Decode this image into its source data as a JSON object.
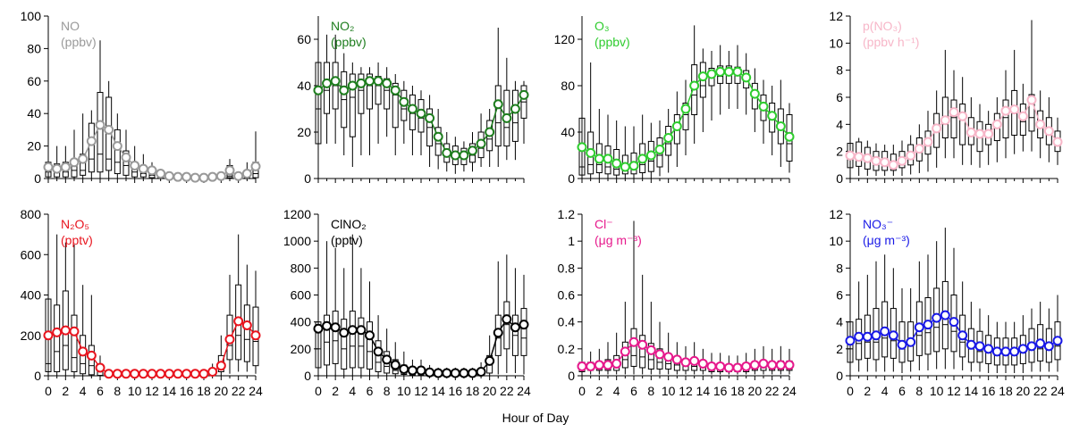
{
  "xlabel": "Hour of Day",
  "chart_data": [
    {
      "type": "box",
      "title": "NO",
      "unit": "(ppbv)",
      "color": "#999999",
      "ylim": [
        0,
        100
      ],
      "yticks": [
        0,
        20,
        40,
        60,
        80,
        100
      ],
      "xticks": [
        0,
        2,
        4,
        6,
        8,
        10,
        12,
        14,
        16,
        18,
        20,
        22,
        24
      ],
      "means": [
        7,
        6,
        7,
        10,
        12,
        23,
        33,
        30,
        20,
        13,
        8,
        6,
        5,
        3,
        1.5,
        1,
        1,
        0.5,
        0.5,
        1,
        1.5,
        5,
        1.5,
        3,
        7.5
      ],
      "q1": [
        1,
        1,
        1,
        1,
        2,
        4,
        4,
        5,
        3,
        2,
        1,
        1,
        0.5,
        0.5,
        0.3,
        0.3,
        0.3,
        0.3,
        0.3,
        0.3,
        0.3,
        0.5,
        0.3,
        0.3,
        0.5
      ],
      "median": [
        4,
        4,
        4,
        5,
        5,
        12,
        15,
        12,
        10,
        8,
        4,
        3,
        2,
        1,
        0.8,
        0.6,
        0.6,
        0.3,
        0.3,
        0.6,
        0.8,
        1.5,
        0.8,
        1.5,
        3
      ],
      "q3": [
        10,
        9,
        10,
        12,
        15,
        34,
        53,
        50,
        30,
        17,
        10,
        8,
        6,
        3,
        2,
        1.5,
        1.5,
        1,
        1,
        1.5,
        2,
        8,
        2,
        5,
        10
      ],
      "wlow": [
        0,
        0,
        0,
        0,
        0,
        0,
        0,
        0,
        0,
        0,
        0,
        0,
        0,
        0,
        0,
        0,
        0,
        0,
        0,
        0,
        0,
        0,
        0,
        0,
        0
      ],
      "whigh": [
        25,
        20,
        20,
        30,
        40,
        42,
        85,
        60,
        40,
        30,
        20,
        15,
        10,
        6,
        4,
        3,
        3,
        2,
        2,
        3,
        4,
        12,
        4,
        10,
        29
      ]
    },
    {
      "type": "box",
      "title": "NO₂",
      "unit": "(ppbv)",
      "color": "#1e7d1e",
      "ylim": [
        0,
        70
      ],
      "yticks": [
        0,
        20,
        40,
        60
      ],
      "xticks": [
        0,
        2,
        4,
        6,
        8,
        10,
        12,
        14,
        16,
        18,
        20,
        22,
        24
      ],
      "means": [
        38,
        41,
        42,
        38,
        40,
        41,
        42,
        42,
        41,
        38,
        33,
        30,
        28,
        26,
        18,
        11,
        10,
        10,
        12,
        15,
        20,
        32,
        26,
        30,
        36
      ],
      "q1": [
        15,
        28,
        30,
        22,
        18,
        28,
        30,
        32,
        30,
        22,
        25,
        21,
        20,
        14,
        10,
        7,
        6,
        6,
        7,
        9,
        12,
        14,
        14,
        16,
        26
      ],
      "median": [
        30,
        38,
        40,
        34,
        35,
        38,
        40,
        40,
        38,
        36,
        30,
        28,
        26,
        22,
        15,
        10,
        9,
        9,
        10,
        13,
        17,
        24,
        22,
        24,
        33
      ],
      "q3": [
        50,
        50,
        50,
        46,
        45,
        45,
        45,
        44,
        43,
        41,
        38,
        36,
        34,
        30,
        22,
        15,
        14,
        13,
        15,
        20,
        25,
        40,
        38,
        38,
        40
      ],
      "wlow": [
        5,
        15,
        15,
        10,
        5,
        10,
        10,
        15,
        18,
        10,
        15,
        10,
        10,
        5,
        4,
        3,
        2,
        3,
        3,
        5,
        5,
        5,
        8,
        8,
        15
      ],
      "whigh": [
        70,
        62,
        62,
        54,
        50,
        48,
        48,
        50,
        48,
        45,
        42,
        40,
        38,
        36,
        30,
        20,
        18,
        16,
        20,
        28,
        30,
        65,
        52,
        42,
        42
      ]
    },
    {
      "type": "box",
      "title": "O₃",
      "unit": "(ppbv)",
      "color": "#2ecc2e",
      "ylim": [
        0,
        140
      ],
      "yticks": [
        0,
        40,
        80,
        120
      ],
      "xticks": [
        0,
        2,
        4,
        6,
        8,
        10,
        12,
        14,
        16,
        18,
        20,
        22,
        24
      ],
      "means": [
        27,
        22,
        17,
        17,
        13,
        10,
        11,
        17,
        20,
        25,
        35,
        45,
        60,
        80,
        88,
        90,
        92,
        92,
        92,
        87,
        73,
        62,
        54,
        45,
        36
      ],
      "q1": [
        3,
        4,
        5,
        4,
        3,
        4,
        4,
        5,
        6,
        10,
        20,
        30,
        42,
        55,
        70,
        80,
        82,
        82,
        82,
        78,
        60,
        50,
        40,
        30,
        15
      ],
      "median": [
        10,
        12,
        12,
        10,
        8,
        7,
        8,
        12,
        15,
        20,
        30,
        42,
        55,
        72,
        80,
        88,
        88,
        90,
        90,
        85,
        70,
        60,
        52,
        42,
        30
      ],
      "q3": [
        52,
        40,
        30,
        28,
        25,
        20,
        22,
        30,
        32,
        35,
        45,
        55,
        65,
        98,
        100,
        95,
        97,
        97,
        96,
        93,
        82,
        72,
        65,
        60,
        55
      ],
      "wlow": [
        0,
        0,
        0,
        0,
        0,
        0,
        0,
        0,
        0,
        2,
        5,
        10,
        20,
        30,
        40,
        50,
        55,
        60,
        60,
        55,
        40,
        30,
        20,
        10,
        5
      ],
      "whigh": [
        98,
        100,
        60,
        55,
        50,
        45,
        45,
        55,
        48,
        50,
        60,
        75,
        85,
        132,
        112,
        110,
        115,
        110,
        115,
        108,
        95,
        85,
        80,
        85,
        65
      ]
    },
    {
      "type": "box",
      "title": "p(NO₃)",
      "unit": "(ppbv h⁻¹)",
      "color": "#f7b6c8",
      "ylim": [
        0,
        12
      ],
      "yticks": [
        0,
        2,
        4,
        6,
        8,
        10,
        12
      ],
      "xticks": [
        0,
        2,
        4,
        6,
        8,
        10,
        12,
        14,
        16,
        18,
        20,
        22,
        24
      ],
      "means": [
        1.7,
        1.6,
        1.5,
        1.3,
        1.2,
        1.0,
        1.3,
        1.7,
        2.2,
        2.7,
        3.7,
        4.3,
        4.9,
        4.6,
        3.4,
        3.3,
        3.3,
        4.0,
        5.0,
        5.1,
        4.6,
        5.8,
        4.0,
        3.5,
        2.7
      ],
      "q1": [
        0.8,
        0.9,
        0.7,
        0.6,
        0.6,
        0.6,
        0.8,
        1.0,
        1.3,
        1.8,
        2.3,
        3.0,
        3.0,
        2.5,
        2.5,
        2.0,
        2.5,
        2.8,
        3.0,
        3.2,
        3.2,
        3.5,
        3.0,
        2.5,
        2.0
      ],
      "median": [
        1.5,
        1.4,
        1.3,
        1.2,
        1.0,
        1.0,
        1.2,
        1.5,
        2.0,
        2.5,
        3.5,
        4.0,
        4.5,
        4.3,
        3.5,
        3.2,
        3.3,
        3.8,
        4.5,
        4.8,
        4.2,
        4.5,
        3.8,
        3.3,
        2.5
      ],
      "q3": [
        2.6,
        2.7,
        2.3,
        2.0,
        2.0,
        1.8,
        2.0,
        2.5,
        3.0,
        3.5,
        4.8,
        6.0,
        5.8,
        5.5,
        4.5,
        4.2,
        4.0,
        4.8,
        5.8,
        6.5,
        5.5,
        6.2,
        5.0,
        4.5,
        3.5
      ],
      "wlow": [
        0.2,
        0.2,
        0.2,
        0.2,
        0.2,
        0.2,
        0.2,
        0.3,
        0.4,
        0.5,
        0.8,
        1.5,
        1.5,
        1.0,
        1.0,
        0.8,
        1.0,
        1.2,
        1.5,
        1.8,
        2.0,
        2.0,
        1.5,
        1.2,
        1.0
      ],
      "whigh": [
        3.2,
        3.0,
        2.8,
        2.6,
        2.5,
        2.5,
        2.8,
        3.2,
        4.0,
        5.0,
        6.5,
        9.5,
        8.0,
        7.5,
        6.0,
        5.5,
        5.0,
        6.0,
        8.0,
        9.5,
        7.0,
        11.7,
        6.5,
        6.0,
        4.5
      ]
    },
    {
      "type": "box",
      "title": "N₂O₅",
      "unit": "(pptv)",
      "color": "#e8141e",
      "ylim": [
        0,
        800
      ],
      "yticks": [
        0,
        200,
        400,
        600,
        800
      ],
      "xticks": [
        0,
        2,
        4,
        6,
        8,
        10,
        12,
        14,
        16,
        18,
        20,
        22,
        24
      ],
      "means": [
        200,
        215,
        225,
        220,
        120,
        100,
        40,
        10,
        10,
        10,
        10,
        10,
        10,
        10,
        10,
        10,
        10,
        10,
        10,
        20,
        50,
        180,
        270,
        250,
        200
      ],
      "q1": [
        20,
        20,
        30,
        20,
        10,
        5,
        2,
        1,
        1,
        1,
        1,
        1,
        1,
        1,
        1,
        1,
        1,
        1,
        1,
        2,
        20,
        80,
        80,
        70,
        50
      ],
      "median": [
        60,
        120,
        150,
        90,
        60,
        50,
        20,
        5,
        5,
        5,
        5,
        5,
        5,
        5,
        5,
        5,
        5,
        5,
        5,
        10,
        40,
        150,
        200,
        180,
        170
      ],
      "q3": [
        380,
        350,
        420,
        300,
        200,
        150,
        50,
        15,
        15,
        15,
        15,
        15,
        15,
        15,
        15,
        15,
        15,
        15,
        15,
        30,
        100,
        300,
        450,
        350,
        340
      ],
      "wlow": [
        0,
        0,
        0,
        0,
        0,
        0,
        0,
        0,
        0,
        0,
        0,
        0,
        0,
        0,
        0,
        0,
        0,
        0,
        0,
        0,
        0,
        10,
        20,
        20,
        10
      ],
      "whigh": [
        650,
        700,
        660,
        650,
        450,
        400,
        100,
        30,
        30,
        30,
        30,
        30,
        30,
        30,
        30,
        30,
        30,
        30,
        30,
        60,
        200,
        500,
        700,
        550,
        520
      ]
    },
    {
      "type": "box",
      "title": "ClNO₂",
      "unit": "(pptv)",
      "color": "#000000",
      "ylim": [
        0,
        1200
      ],
      "yticks": [
        0,
        200,
        400,
        600,
        800,
        1000,
        1200
      ],
      "xticks": [
        0,
        2,
        4,
        6,
        8,
        10,
        12,
        14,
        16,
        18,
        20,
        22,
        24
      ],
      "means": [
        350,
        370,
        360,
        320,
        340,
        340,
        300,
        180,
        120,
        80,
        50,
        40,
        40,
        25,
        20,
        20,
        20,
        20,
        20,
        30,
        110,
        320,
        420,
        360,
        380
      ],
      "q1": [
        60,
        80,
        90,
        50,
        60,
        60,
        50,
        30,
        20,
        15,
        10,
        5,
        5,
        5,
        5,
        5,
        5,
        5,
        5,
        5,
        20,
        150,
        200,
        150,
        150
      ],
      "median": [
        200,
        250,
        260,
        200,
        220,
        220,
        180,
        100,
        70,
        40,
        30,
        20,
        20,
        15,
        12,
        12,
        12,
        12,
        12,
        20,
        80,
        280,
        380,
        300,
        280
      ],
      "q3": [
        400,
        450,
        480,
        420,
        480,
        430,
        400,
        260,
        180,
        120,
        80,
        60,
        60,
        40,
        30,
        30,
        30,
        30,
        30,
        50,
        150,
        450,
        550,
        450,
        500
      ],
      "wlow": [
        0,
        0,
        0,
        0,
        0,
        0,
        0,
        0,
        0,
        0,
        0,
        0,
        0,
        0,
        0,
        0,
        0,
        0,
        0,
        0,
        0,
        10,
        20,
        20,
        10
      ],
      "whigh": [
        900,
        1000,
        950,
        800,
        1050,
        800,
        700,
        450,
        350,
        250,
        180,
        120,
        120,
        80,
        60,
        60,
        60,
        60,
        60,
        100,
        300,
        850,
        900,
        800,
        750
      ]
    },
    {
      "type": "box",
      "title": "Cl⁻",
      "unit": "(μg m⁻³)",
      "color": "#e6198c",
      "ylim": [
        0,
        1.2
      ],
      "yticks": [
        0,
        0.2,
        0.4,
        0.6,
        0.8,
        1.0,
        1.2
      ],
      "xticks": [
        0,
        2,
        4,
        6,
        8,
        10,
        12,
        14,
        16,
        18,
        20,
        22,
        24
      ],
      "means": [
        0.07,
        0.07,
        0.08,
        0.08,
        0.09,
        0.18,
        0.25,
        0.23,
        0.19,
        0.16,
        0.14,
        0.12,
        0.1,
        0.11,
        0.09,
        0.07,
        0.07,
        0.06,
        0.06,
        0.07,
        0.08,
        0.09,
        0.08,
        0.08,
        0.08
      ],
      "q1": [
        0.03,
        0.04,
        0.04,
        0.04,
        0.04,
        0.06,
        0.07,
        0.06,
        0.05,
        0.05,
        0.05,
        0.04,
        0.04,
        0.04,
        0.04,
        0.03,
        0.03,
        0.03,
        0.03,
        0.03,
        0.04,
        0.04,
        0.04,
        0.04,
        0.04
      ],
      "median": [
        0.05,
        0.06,
        0.06,
        0.06,
        0.07,
        0.12,
        0.15,
        0.14,
        0.12,
        0.1,
        0.09,
        0.08,
        0.07,
        0.07,
        0.06,
        0.05,
        0.05,
        0.05,
        0.05,
        0.05,
        0.06,
        0.06,
        0.06,
        0.06,
        0.06
      ],
      "q3": [
        0.1,
        0.1,
        0.1,
        0.12,
        0.15,
        0.25,
        0.35,
        0.3,
        0.24,
        0.2,
        0.16,
        0.14,
        0.12,
        0.13,
        0.1,
        0.09,
        0.09,
        0.08,
        0.08,
        0.09,
        0.1,
        0.11,
        0.1,
        0.11,
        0.11
      ],
      "wlow": [
        0.01,
        0.01,
        0.01,
        0.01,
        0.01,
        0.01,
        0.01,
        0.01,
        0.01,
        0.01,
        0.01,
        0.01,
        0.01,
        0.01,
        0.01,
        0.01,
        0.01,
        0.01,
        0.01,
        0.01,
        0.01,
        0.01,
        0.01,
        0.01,
        0.01
      ],
      "whigh": [
        0.2,
        0.18,
        0.2,
        0.25,
        0.32,
        0.55,
        1.15,
        0.75,
        0.55,
        0.4,
        0.32,
        0.25,
        0.22,
        0.25,
        0.2,
        0.17,
        0.17,
        0.15,
        0.15,
        0.17,
        0.2,
        0.22,
        0.2,
        0.22,
        0.2
      ]
    },
    {
      "type": "box",
      "title": "NO₃⁻",
      "unit": "(μg m⁻³)",
      "color": "#1919e6",
      "ylim": [
        0,
        12
      ],
      "yticks": [
        0,
        2,
        4,
        6,
        8,
        10,
        12
      ],
      "xticks": [
        0,
        2,
        4,
        6,
        8,
        10,
        12,
        14,
        16,
        18,
        20,
        22,
        24
      ],
      "means": [
        2.6,
        2.9,
        2.9,
        3.0,
        3.3,
        3.0,
        2.3,
        2.5,
        3.6,
        3.8,
        4.3,
        4.5,
        4.0,
        3.0,
        2.3,
        2.2,
        2.0,
        1.8,
        1.8,
        1.8,
        2.0,
        2.2,
        2.4,
        2.2,
        2.6
      ],
      "q1": [
        1.0,
        1.2,
        1.3,
        1.2,
        1.4,
        1.3,
        1.0,
        1.1,
        1.5,
        1.6,
        1.8,
        2.0,
        1.8,
        1.4,
        1.0,
        1.0,
        0.9,
        0.8,
        0.8,
        0.8,
        0.9,
        1.0,
        1.1,
        1.0,
        1.2
      ],
      "median": [
        2.0,
        2.4,
        2.5,
        2.5,
        2.8,
        2.6,
        2.0,
        2.2,
        3.0,
        3.2,
        3.6,
        3.8,
        3.3,
        2.5,
        2.0,
        1.8,
        1.7,
        1.5,
        1.5,
        1.5,
        1.7,
        1.9,
        2.0,
        1.9,
        2.2
      ],
      "q3": [
        4.0,
        4.2,
        4.5,
        5.0,
        5.5,
        5.0,
        4.0,
        4.0,
        5.5,
        5.8,
        6.5,
        7.0,
        6.0,
        4.5,
        3.5,
        3.3,
        3.0,
        2.8,
        2.8,
        2.8,
        3.0,
        3.5,
        3.8,
        3.5,
        4.0
      ],
      "wlow": [
        0.2,
        0.3,
        0.3,
        0.3,
        0.3,
        0.3,
        0.2,
        0.3,
        0.4,
        0.4,
        0.5,
        0.5,
        0.5,
        0.4,
        0.3,
        0.3,
        0.2,
        0.2,
        0.2,
        0.2,
        0.2,
        0.3,
        0.3,
        0.3,
        0.3
      ],
      "whigh": [
        6.5,
        7.0,
        7.5,
        8.5,
        9.0,
        8.0,
        6.5,
        6.5,
        8.5,
        9.0,
        10.0,
        11.0,
        9.5,
        7.0,
        5.5,
        5.0,
        4.5,
        4.0,
        4.0,
        4.0,
        4.5,
        5.0,
        5.5,
        5.0,
        6.0
      ]
    }
  ]
}
